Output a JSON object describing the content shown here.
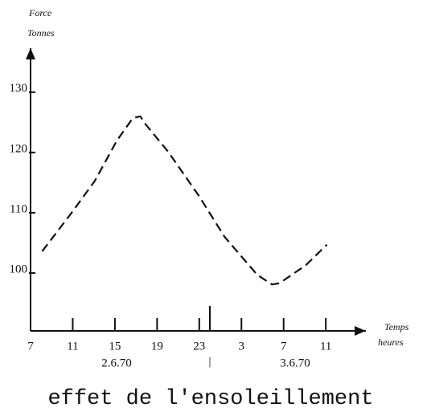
{
  "chart_data": {
    "type": "line",
    "y_label": [
      "Force",
      "Tonnes"
    ],
    "x_label": [
      "Temps",
      "heures"
    ],
    "title": "effet de l'ensoleillement",
    "date_labels": [
      "2.6.70",
      "3.6.70"
    ],
    "separator": "|",
    "x": [
      8.1,
      10.9,
      13.1,
      15.2,
      16.7,
      17.4,
      17.9,
      20.1,
      23,
      25.4,
      28.5,
      29.9,
      30.6,
      33.1,
      35.1
    ],
    "values": [
      103.6,
      110,
      115.3,
      122,
      125.7,
      126,
      124.7,
      120,
      112.7,
      106,
      99.7,
      98.1,
      98.3,
      101.3,
      104.7
    ],
    "color": "#111111",
    "dashed": true,
    "xlim": [
      7,
      38.8
    ],
    "ylim": [
      90.4,
      137.3
    ],
    "xticks": [
      7,
      11,
      15,
      19,
      23,
      {
        "value": 27,
        "label": "3"
      },
      {
        "value": 31,
        "label": "7"
      },
      {
        "value": 35,
        "label": "11"
      }
    ],
    "yticks": [
      100,
      110,
      120,
      130
    ]
  }
}
